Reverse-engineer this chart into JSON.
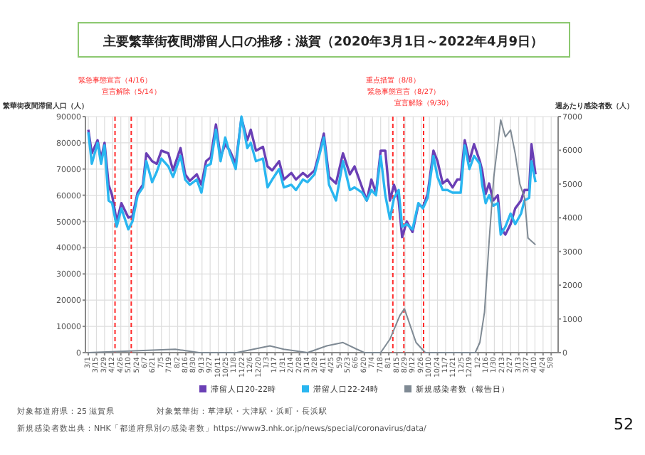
{
  "chart_data": {
    "type": "line",
    "title": "主要繁華街夜間滞留人口の推移：滋賀（2020年3月1日～2022年4月9日）",
    "ylabel": "繁華街夜間滞留人口（人）",
    "y2label": "週あたり感染者数（人）",
    "xlim": [
      "2020-02-25",
      "2022-05-20"
    ],
    "xticks": [
      {
        "value": "2020-03-01",
        "label": "3/1"
      },
      {
        "value": "2020-03-15",
        "label": "3/15"
      },
      {
        "value": "2020-03-29",
        "label": "3/29"
      },
      {
        "value": "2020-04-12",
        "label": "4/12"
      },
      {
        "value": "2020-04-26",
        "label": "4/26"
      },
      {
        "value": "2020-05-10",
        "label": "5/10"
      },
      {
        "value": "2020-05-24",
        "label": "5/24"
      },
      {
        "value": "2020-06-07",
        "label": "6/7"
      },
      {
        "value": "2020-06-21",
        "label": "6/21"
      },
      {
        "value": "2020-07-05",
        "label": "7/5"
      },
      {
        "value": "2020-07-19",
        "label": "7/19"
      },
      {
        "value": "2020-08-02",
        "label": "8/2"
      },
      {
        "value": "2020-08-16",
        "label": "8/16"
      },
      {
        "value": "2020-08-30",
        "label": "8/30"
      },
      {
        "value": "2020-09-13",
        "label": "9/13"
      },
      {
        "value": "2020-09-27",
        "label": "9/27"
      },
      {
        "value": "2020-10-11",
        "label": "10/11"
      },
      {
        "value": "2020-10-25",
        "label": "10/25"
      },
      {
        "value": "2020-11-08",
        "label": "11/8"
      },
      {
        "value": "2020-11-22",
        "label": "11/22"
      },
      {
        "value": "2020-12-06",
        "label": "12/6"
      },
      {
        "value": "2020-12-20",
        "label": "12/20"
      },
      {
        "value": "2021-01-03",
        "label": "1/3"
      },
      {
        "value": "2021-01-17",
        "label": "1/17"
      },
      {
        "value": "2021-01-31",
        "label": "1/31"
      },
      {
        "value": "2021-02-14",
        "label": "2/14"
      },
      {
        "value": "2021-02-28",
        "label": "2/28"
      },
      {
        "value": "2021-03-14",
        "label": "3/14"
      },
      {
        "value": "2021-03-28",
        "label": "3/28"
      },
      {
        "value": "2021-04-11",
        "label": "4/11"
      },
      {
        "value": "2021-04-25",
        "label": "4/25"
      },
      {
        "value": "2021-05-09",
        "label": "5/9"
      },
      {
        "value": "2021-05-23",
        "label": "5/23"
      },
      {
        "value": "2021-06-06",
        "label": "6/6"
      },
      {
        "value": "2021-06-20",
        "label": "6/20"
      },
      {
        "value": "2021-07-04",
        "label": "7/4"
      },
      {
        "value": "2021-07-18",
        "label": "7/18"
      },
      {
        "value": "2021-08-01",
        "label": "8/1"
      },
      {
        "value": "2021-08-15",
        "label": "8/15"
      },
      {
        "value": "2021-08-29",
        "label": "8/29"
      },
      {
        "value": "2021-09-12",
        "label": "9/12"
      },
      {
        "value": "2021-09-26",
        "label": "9/26"
      },
      {
        "value": "2021-10-10",
        "label": "10/10"
      },
      {
        "value": "2021-10-24",
        "label": "10/24"
      },
      {
        "value": "2021-11-07",
        "label": "11/7"
      },
      {
        "value": "2021-11-21",
        "label": "11/21"
      },
      {
        "value": "2021-12-05",
        "label": "12/5"
      },
      {
        "value": "2021-12-19",
        "label": "12/19"
      },
      {
        "value": "2022-01-02",
        "label": "1/2"
      },
      {
        "value": "2022-01-16",
        "label": "1/16"
      },
      {
        "value": "2022-01-30",
        "label": "1/30"
      },
      {
        "value": "2022-02-13",
        "label": "2/13"
      },
      {
        "value": "2022-02-27",
        "label": "2/27"
      },
      {
        "value": "2022-03-13",
        "label": "3/13"
      },
      {
        "value": "2022-03-27",
        "label": "3/27"
      },
      {
        "value": "2022-04-10",
        "label": "4/10"
      },
      {
        "value": "2022-04-24",
        "label": "4/24"
      },
      {
        "value": "2022-05-08",
        "label": "5/8"
      }
    ],
    "ylim": [
      0,
      90000
    ],
    "yticks": [
      0,
      10000,
      20000,
      30000,
      40000,
      50000,
      60000,
      70000,
      80000,
      90000
    ],
    "y2lim": [
      0,
      7000
    ],
    "y2ticks": [
      0,
      1000,
      2000,
      3000,
      4000,
      5000,
      6000,
      7000
    ],
    "grid": true,
    "legend": "bottom",
    "marker": "none",
    "line_style": "solid",
    "x": [
      "2020-03-01",
      "2020-03-07",
      "2020-03-17",
      "2020-03-23",
      "2020-03-29",
      "2020-04-05",
      "2020-04-11",
      "2020-04-19",
      "2020-04-27",
      "2020-05-09",
      "2020-05-16",
      "2020-05-25",
      "2020-06-03",
      "2020-06-09",
      "2020-06-19",
      "2020-06-27",
      "2020-07-05",
      "2020-07-17",
      "2020-07-25",
      "2020-08-07",
      "2020-08-15",
      "2020-08-23",
      "2020-09-04",
      "2020-09-12",
      "2020-09-20",
      "2020-09-28",
      "2020-10-07",
      "2020-10-15",
      "2020-10-23",
      "2020-10-31",
      "2020-11-10",
      "2020-11-20",
      "2020-11-30",
      "2020-12-06",
      "2020-12-15",
      "2020-12-27",
      "2021-01-04",
      "2021-01-12",
      "2021-01-24",
      "2021-02-01",
      "2021-02-14",
      "2021-02-22",
      "2021-03-06",
      "2021-03-14",
      "2021-03-26",
      "2021-04-03",
      "2021-04-11",
      "2021-04-20",
      "2021-05-02",
      "2021-05-14",
      "2021-05-26",
      "2021-06-03",
      "2021-06-16",
      "2021-06-24",
      "2021-07-02",
      "2021-07-10",
      "2021-07-18",
      "2021-07-26",
      "2021-08-03",
      "2021-08-10",
      "2021-08-18",
      "2021-08-24",
      "2021-09-01",
      "2021-09-11",
      "2021-09-21",
      "2021-09-29",
      "2021-10-07",
      "2021-10-17",
      "2021-10-24",
      "2021-11-02",
      "2021-11-10",
      "2021-11-19",
      "2021-11-27",
      "2021-12-03",
      "2021-12-10",
      "2021-12-18",
      "2021-12-26",
      "2022-01-05",
      "2022-01-09",
      "2022-01-15",
      "2022-01-21",
      "2022-01-28",
      "2022-02-05",
      "2022-02-10",
      "2022-02-18",
      "2022-02-27",
      "2022-03-07",
      "2022-03-17",
      "2022-03-23",
      "2022-03-31",
      "2022-04-04",
      "2022-04-11"
    ],
    "series": [
      {
        "name": "滞留人口20-22時",
        "color": "#6a3fb5",
        "values": [
          85000,
          76000,
          81000,
          74000,
          80000,
          64000,
          60000,
          50000,
          57000,
          51500,
          52000,
          61000,
          64000,
          76000,
          73000,
          72000,
          77000,
          76000,
          69500,
          78000,
          68000,
          65500,
          68000,
          64000,
          73000,
          74500,
          87000,
          74500,
          79500,
          77000,
          72000,
          89500,
          81000,
          85000,
          77000,
          78500,
          71000,
          69500,
          73000,
          66000,
          68500,
          66000,
          68500,
          67000,
          69500,
          76000,
          83500,
          67000,
          64500,
          76000,
          68000,
          71000,
          63000,
          58000,
          66000,
          61000,
          77000,
          77000,
          58000,
          64000,
          58000,
          44000,
          50000,
          46000,
          56500,
          55500,
          60500,
          77000,
          73000,
          64500,
          66000,
          63000,
          66000,
          66000,
          81000,
          73000,
          79500,
          73000,
          69500,
          60500,
          64500,
          58000,
          60000,
          47500,
          45000,
          49000,
          55000,
          58000,
          62000,
          62000,
          79500,
          68000
        ]
      },
      {
        "name": "滞留人口22-24時",
        "color": "#29b6f0",
        "values": [
          84000,
          72000,
          80000,
          72000,
          79000,
          58000,
          57000,
          48000,
          55000,
          47000,
          50000,
          60000,
          63000,
          73000,
          65000,
          69000,
          74000,
          71000,
          67000,
          75000,
          66000,
          64000,
          66000,
          61000,
          71000,
          72000,
          85000,
          73000,
          82000,
          76000,
          70000,
          90000,
          78000,
          80000,
          73000,
          74000,
          63000,
          66000,
          70000,
          63000,
          64000,
          62000,
          66000,
          65000,
          68000,
          75000,
          82000,
          64000,
          58000,
          73000,
          62000,
          63000,
          61000,
          58000,
          62000,
          60000,
          75000,
          60000,
          51000,
          59000,
          62000,
          48000,
          49000,
          47000,
          57000,
          55000,
          59000,
          75000,
          67000,
          62000,
          62000,
          61000,
          61000,
          61000,
          79000,
          70000,
          75000,
          72000,
          64000,
          57000,
          60000,
          56000,
          57000,
          45000,
          48000,
          53000,
          49000,
          53000,
          58000,
          59000,
          73000,
          65000
        ]
      },
      {
        "name": "新規感染者数（報告日）",
        "color": "#7f8a94",
        "axis": "y2",
        "x": [
          "2020-03-01",
          "2020-07-29",
          "2020-09-08",
          "2020-11-12",
          "2021-01-08",
          "2021-02-01",
          "2021-03-14",
          "2021-04-16",
          "2021-05-14",
          "2021-06-07",
          "2021-06-20",
          "2021-07-18",
          "2021-08-03",
          "2021-08-20",
          "2021-08-28",
          "2021-09-05",
          "2021-09-17",
          "2021-10-03",
          "2021-12-28",
          "2022-01-05",
          "2022-01-13",
          "2022-01-21",
          "2022-01-29",
          "2022-02-10",
          "2022-02-18",
          "2022-02-27",
          "2022-03-07",
          "2022-03-15",
          "2022-03-23",
          "2022-03-29",
          "2022-04-11"
        ],
        "values": [
          0,
          100,
          0,
          0,
          200,
          100,
          0,
          200,
          300,
          100,
          0,
          0,
          400,
          1100,
          1300,
          900,
          300,
          0,
          0,
          300,
          1200,
          3300,
          5200,
          6900,
          6400,
          6600,
          5900,
          5000,
          4600,
          3400,
          3200
        ]
      }
    ],
    "ref_lines": [
      {
        "axis": "x",
        "value": "2020-04-16",
        "label": "緊急事態宣言（4/16）",
        "color": "#ff2a2a",
        "line_style": "dashed"
      },
      {
        "axis": "x",
        "value": "2020-05-14",
        "label": "宣言解除（5/14）",
        "color": "#ff2a2a",
        "line_style": "dashed"
      },
      {
        "axis": "x",
        "value": "2021-08-08",
        "label": "重点措置（8/8）",
        "color": "#ff2a2a",
        "line_style": "dashed"
      },
      {
        "axis": "x",
        "value": "2021-08-27",
        "label": "緊急事態宣言（8/27）",
        "color": "#ff2a2a",
        "line_style": "dashed"
      },
      {
        "axis": "x",
        "value": "2021-09-30",
        "label": "宣言解除（9/30）",
        "color": "#ff2a2a",
        "line_style": "dashed"
      }
    ],
    "annotations": [
      "対象都道府県：25 滋賀県",
      "対象繁華街：草津駅・大津駅・浜町・長浜駅",
      "新規感染者数出典：NHK「都道府県別の感染者数」https://www3.nhk.or.jp/news/special/coronavirus/data/",
      "52"
    ]
  }
}
